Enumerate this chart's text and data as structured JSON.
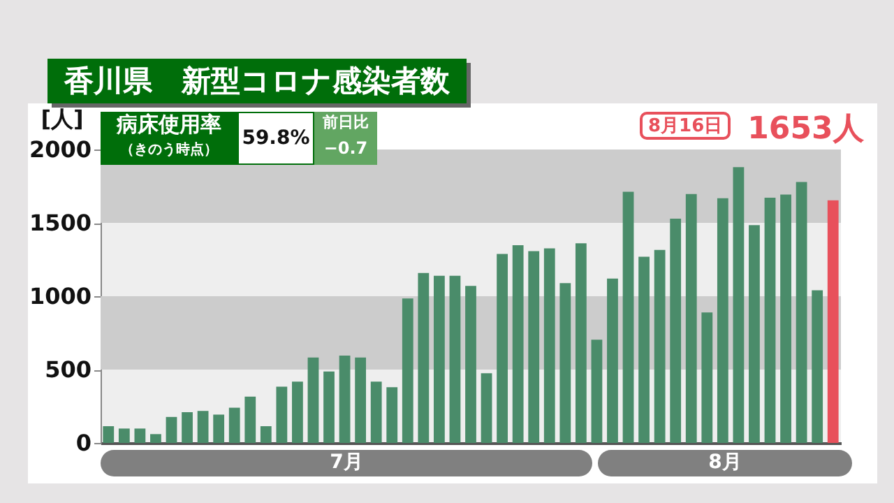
{
  "chart_data": {
    "type": "bar",
    "title": "香川県　新型コロナ感染者数",
    "ylabel": "[人]",
    "categories": [
      null,
      null,
      null,
      null,
      null,
      null,
      null,
      null,
      null,
      null,
      null,
      null,
      null,
      null,
      null,
      null,
      null,
      null,
      null,
      null,
      null,
      null,
      null,
      null,
      null,
      null,
      null,
      null,
      null,
      null,
      null,
      null,
      null,
      null,
      null,
      null,
      null,
      null,
      null,
      null,
      null,
      null,
      null,
      null,
      null,
      null,
      null
    ],
    "values": [
      114,
      98,
      98,
      60,
      177,
      209,
      218,
      193,
      240,
      316,
      114,
      383,
      418,
      582,
      487,
      595,
      582,
      418,
      380,
      984,
      1158,
      1139,
      1139,
      1070,
      475,
      1288,
      1348,
      1307,
      1326,
      1089,
      1361,
      703,
      1120,
      1712,
      1269,
      1316,
      1528,
      1696,
      889,
      1668,
      1880,
      1484,
      1671,
      1693,
      1778,
      1041,
      1653
    ],
    "colors": [
      "#4a8c6a",
      "#4a8c6a",
      "#4a8c6a",
      "#4a8c6a",
      "#4a8c6a",
      "#4a8c6a",
      "#4a8c6a",
      "#4a8c6a",
      "#4a8c6a",
      "#4a8c6a",
      "#4a8c6a",
      "#4a8c6a",
      "#4a8c6a",
      "#4a8c6a",
      "#4a8c6a",
      "#4a8c6a",
      "#4a8c6a",
      "#4a8c6a",
      "#4a8c6a",
      "#4a8c6a",
      "#4a8c6a",
      "#4a8c6a",
      "#4a8c6a",
      "#4a8c6a",
      "#4a8c6a",
      "#4a8c6a",
      "#4a8c6a",
      "#4a8c6a",
      "#4a8c6a",
      "#4a8c6a",
      "#4a8c6a",
      "#4a8c6a",
      "#4a8c6a",
      "#4a8c6a",
      "#4a8c6a",
      "#4a8c6a",
      "#4a8c6a",
      "#4a8c6a",
      "#4a8c6a",
      "#4a8c6a",
      "#4a8c6a",
      "#4a8c6a",
      "#4a8c6a",
      "#4a8c6a",
      "#4a8c6a",
      "#4a8c6a",
      "#e8505b"
    ],
    "value_labels": [
      null,
      null,
      null,
      null,
      null,
      null,
      null,
      null,
      null,
      null,
      null,
      null,
      null,
      null,
      null,
      null,
      null,
      null,
      null,
      null,
      null,
      null,
      null,
      null,
      null,
      null,
      null,
      null,
      null,
      null,
      null,
      null,
      null,
      null,
      null,
      null,
      null,
      null,
      null,
      null,
      null,
      null,
      null,
      null,
      null,
      null,
      "1653人"
    ],
    "ylim": [
      0,
      2000
    ],
    "yticks": [
      0,
      500,
      1000,
      1500,
      2000
    ],
    "bands": [
      {
        "axis": "y",
        "from": 1500,
        "to": 2000,
        "color": "#cccccc"
      },
      {
        "axis": "y",
        "from": 500,
        "to": 1000,
        "color": "#cccccc"
      }
    ],
    "annotations": [
      "病床使用率",
      "（きのう時点）",
      "59.8%",
      "前日比",
      "−0.7",
      "8月16日",
      "7月",
      "8月"
    ]
  }
}
